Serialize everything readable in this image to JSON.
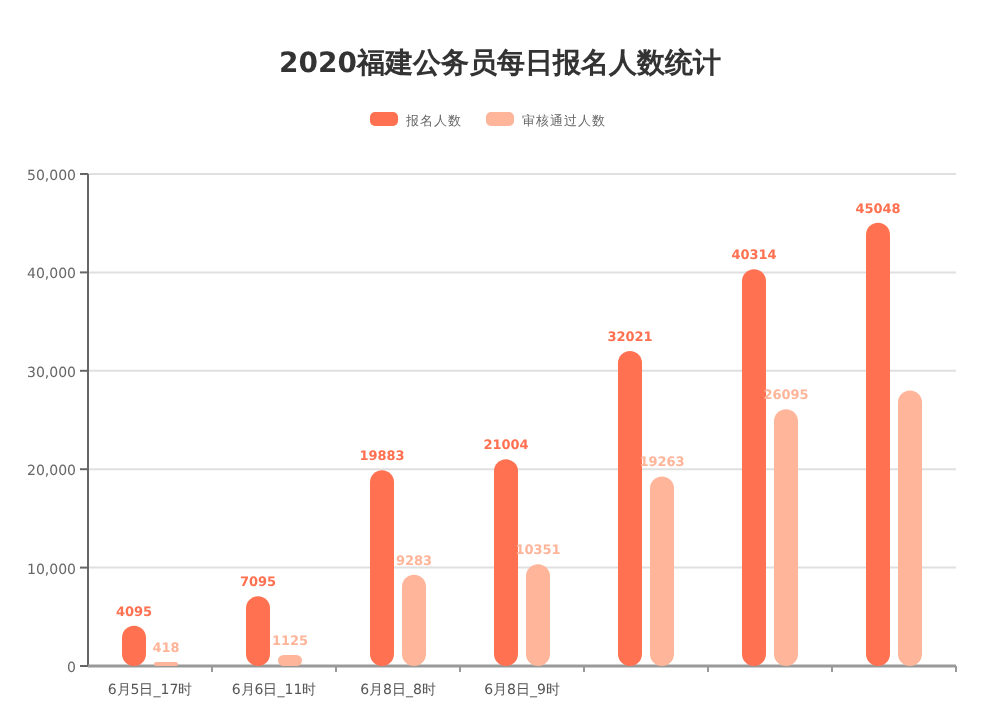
{
  "chart_data": {
    "type": "bar",
    "title": "2020福建公务员每日报名人数统计",
    "categories": [
      "6月5日_17时",
      "6月6日_11时",
      "6月8日_8时",
      "6月8日_9时",
      null,
      null,
      null
    ],
    "series": [
      {
        "name": "报名人数",
        "color": "#ff7150",
        "values": [
          4095,
          7095,
          19883,
          21004,
          32021,
          40314,
          45048
        ],
        "value_labels": [
          "4095",
          "7095",
          "19883",
          "21004",
          "32021",
          "40314",
          "45048"
        ]
      },
      {
        "name": "审核通过人数",
        "color": "#ffb59a",
        "values": [
          418,
          1125,
          9283,
          10351,
          19263,
          26095,
          28000
        ],
        "value_labels": [
          "418",
          "1125",
          "9283",
          "10351",
          "19263",
          "26095",
          null
        ]
      }
    ],
    "ylim": [
      0,
      50000
    ],
    "yticks": [
      {
        "value": 0,
        "label": "0"
      },
      {
        "value": 10000,
        "label": "10,000"
      },
      {
        "value": 20000,
        "label": "20,000"
      },
      {
        "value": 30000,
        "label": "30,000"
      },
      {
        "value": 40000,
        "label": "40,000"
      },
      {
        "value": 50000,
        "label": "50,000"
      }
    ],
    "grid": "y",
    "legend": "top"
  }
}
